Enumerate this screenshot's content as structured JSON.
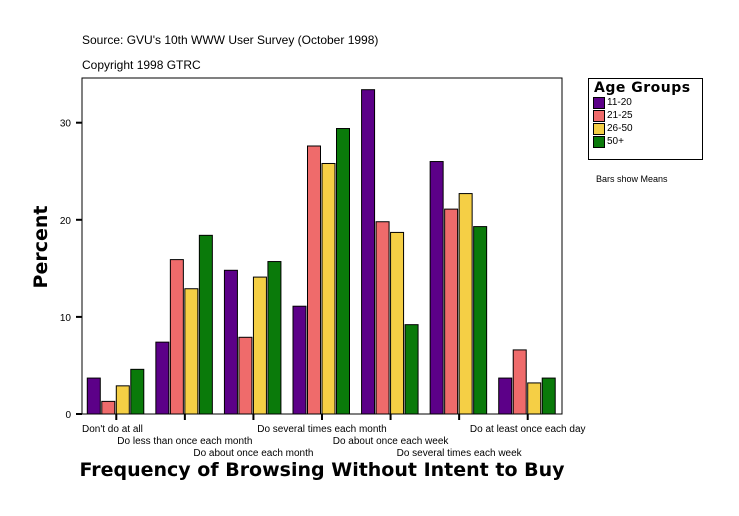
{
  "header": {
    "source": "Source: GVU's 10th WWW User Survey (October 1998)",
    "copyright": "Copyright 1998 GTRC"
  },
  "note": "Bars show Means",
  "chart_data": {
    "type": "bar",
    "xlabel": "Frequency of Browsing Without Intent to Buy",
    "ylabel": "Percent",
    "ylim": [
      0,
      34.5
    ],
    "yticks": [
      0,
      10,
      20,
      30
    ],
    "grid": false,
    "legend_title": "Age Groups",
    "legend_position": "top-right",
    "categories": [
      "Don't do at all",
      "Do less than once each month",
      "Do about once each month",
      "Do several times each month",
      "Do about once each week",
      "Do several times each week",
      "Do at least once each day"
    ],
    "series": [
      {
        "name": "11-20",
        "color": "#5c0088",
        "values": [
          3.7,
          7.4,
          14.8,
          11.1,
          33.4,
          26.0,
          3.7
        ]
      },
      {
        "name": "21-25",
        "color": "#ef6b6b",
        "values": [
          1.3,
          15.9,
          7.9,
          27.6,
          19.8,
          21.1,
          6.6
        ]
      },
      {
        "name": "26-50",
        "color": "#f5cf45",
        "values": [
          2.9,
          12.9,
          14.1,
          25.8,
          18.7,
          22.7,
          3.2
        ]
      },
      {
        "name": "50+",
        "color": "#0a7a0a",
        "values": [
          4.6,
          18.4,
          15.7,
          29.4,
          9.2,
          19.3,
          3.7
        ]
      }
    ]
  }
}
